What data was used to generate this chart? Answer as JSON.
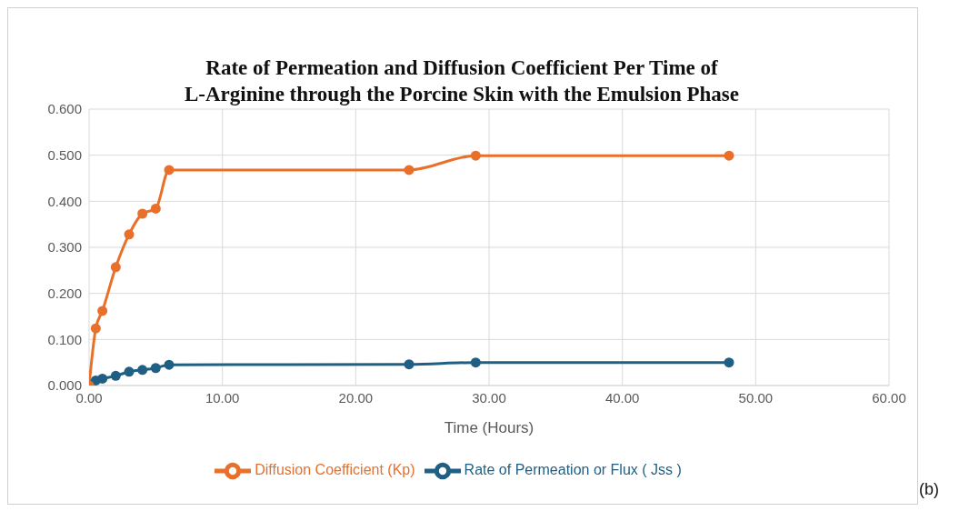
{
  "chart_data": {
    "type": "line",
    "title": "Rate of Permeation and Diffusion Coefficient Per Time of\nL-Arginine through the Porcine Skin with the Emulsion Phase",
    "xlabel": "Time (Hours)",
    "x": [
      0,
      0.5,
      1,
      2,
      3,
      4,
      5,
      6,
      24,
      29,
      48
    ],
    "series": [
      {
        "name": "Rate of Permeation or Flux ( Jss  )",
        "color": "#1f5f84",
        "values": [
          0,
          0.011,
          0.015,
          0.021,
          0.03,
          0.034,
          0.038,
          0.045,
          0.046,
          0.05,
          0.05
        ]
      },
      {
        "name": "Diffusion Coefficient (Kp)",
        "color": "#e8702a",
        "values": [
          0,
          0.124,
          0.162,
          0.257,
          0.328,
          0.373,
          0.384,
          0.468,
          0.468,
          0.499,
          0.499
        ]
      }
    ],
    "xlim": [
      0,
      60
    ],
    "xticks": [
      {
        "value": 0,
        "label": "0.00"
      },
      {
        "value": 10,
        "label": "10.00"
      },
      {
        "value": 20,
        "label": "20.00"
      },
      {
        "value": 30,
        "label": "30.00"
      },
      {
        "value": 40,
        "label": "40.00"
      },
      {
        "value": 50,
        "label": "50.00"
      },
      {
        "value": 60,
        "label": "60.00"
      }
    ],
    "ylim": [
      0,
      0.6
    ],
    "yticks": [
      {
        "value": 0,
        "label": "0.000"
      },
      {
        "value": 0.1,
        "label": "0.100"
      },
      {
        "value": 0.2,
        "label": "0.200"
      },
      {
        "value": 0.3,
        "label": "0.300"
      },
      {
        "value": 0.4,
        "label": "0.400"
      },
      {
        "value": 0.5,
        "label": "0.500"
      },
      {
        "value": 0.6,
        "label": "0.600"
      }
    ],
    "grid": true,
    "legend": "bottom",
    "marker": "circle",
    "line_style": "solid",
    "annotations": [
      "(b)"
    ]
  }
}
